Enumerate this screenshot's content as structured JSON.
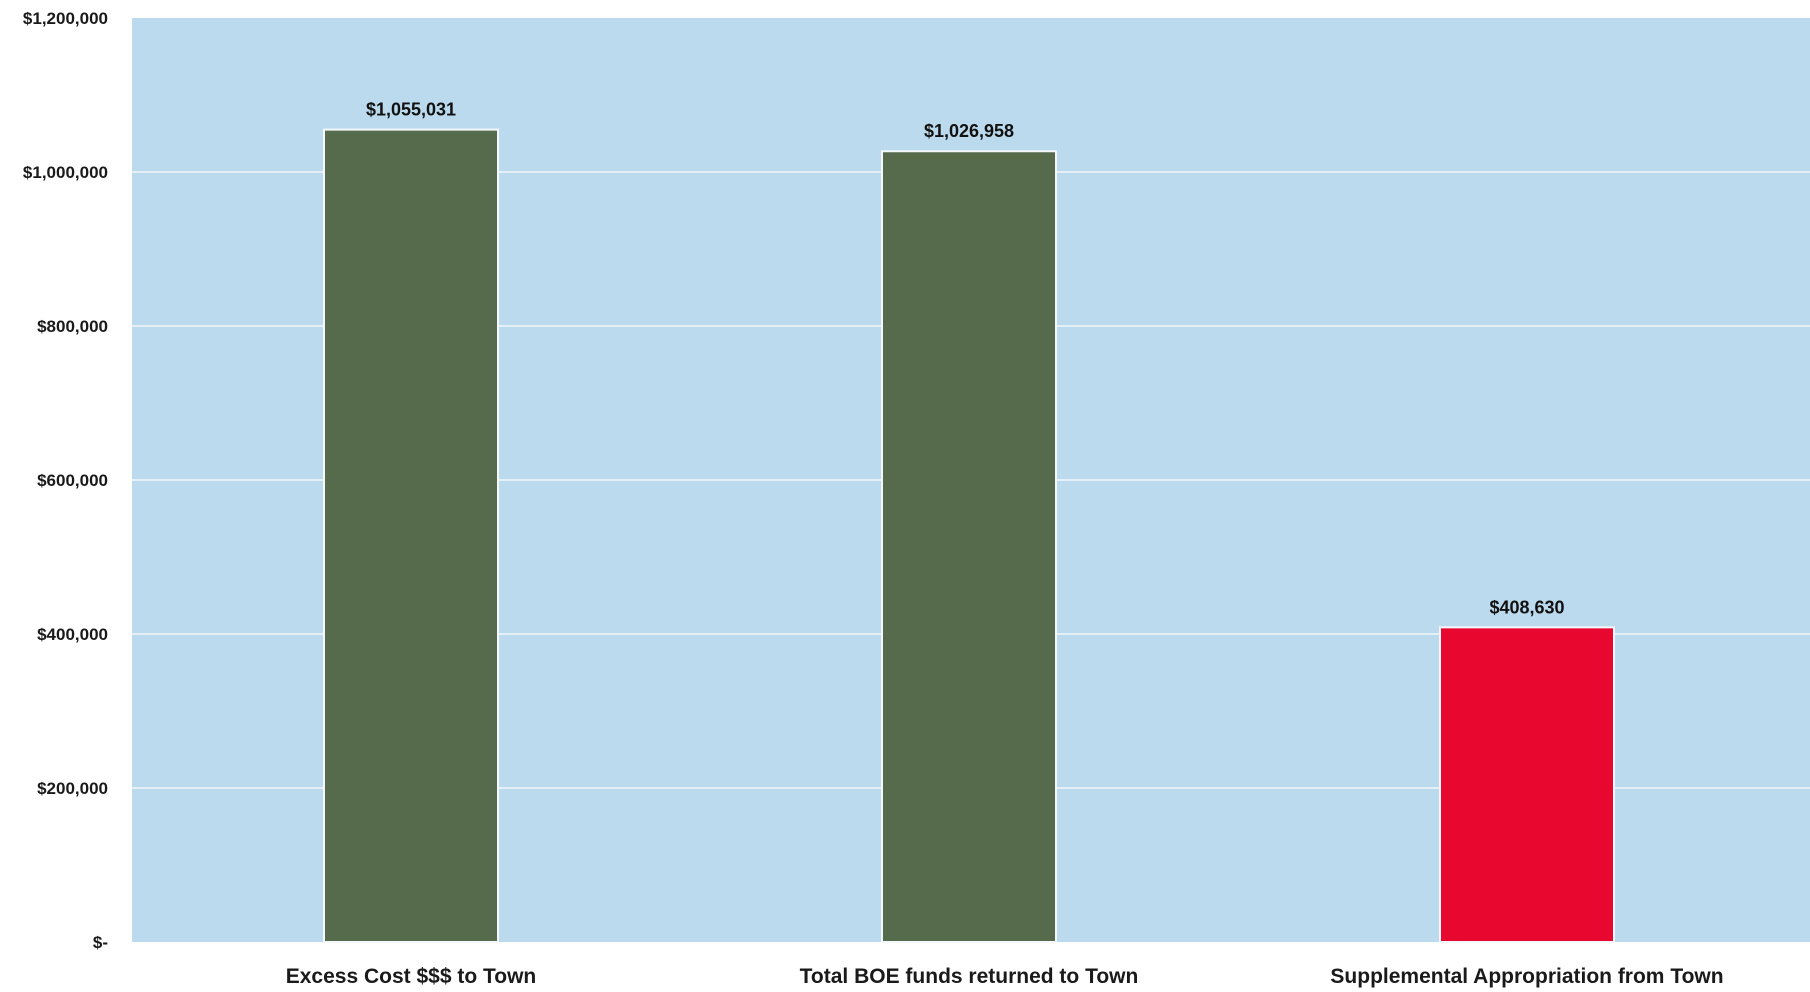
{
  "chart_data": {
    "type": "bar",
    "categories": [
      "Excess Cost $$$ to Town",
      "Total BOE funds returned to Town",
      "Supplemental Appropriation from Town"
    ],
    "values": [
      1055031,
      1026958,
      408630
    ],
    "data_labels": [
      "$1,055,031",
      "$1,026,958",
      "$408,630"
    ],
    "bar_colors": [
      "#566b4c",
      "#566b4c",
      "#e8072e"
    ],
    "plot_background": "#bcdaee",
    "gridline_color": "#e4f0f8",
    "ylim": [
      0,
      1200000
    ],
    "y_ticks": [
      0,
      200000,
      400000,
      600000,
      800000,
      1000000,
      1200000
    ],
    "y_tick_labels": [
      "$-",
      "$200,000",
      "$400,000",
      "$600,000",
      "$800,000",
      "$1,000,000",
      "$1,200,000"
    ],
    "grid": true,
    "legend": "none"
  }
}
